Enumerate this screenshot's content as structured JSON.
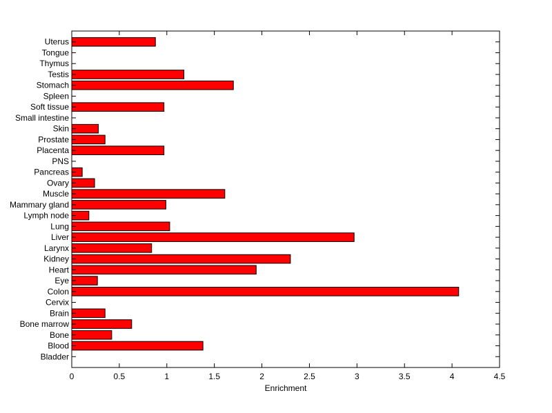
{
  "chart_data": {
    "type": "bar",
    "orientation": "horizontal",
    "xlabel": "Enrichment",
    "xlim": [
      0,
      4.5
    ],
    "xticks": [
      "0",
      "0.5",
      "1",
      "1.5",
      "2",
      "2.5",
      "3",
      "3.5",
      "4",
      "4.5"
    ],
    "grid": false,
    "bar_color": "#ff0000",
    "categories": [
      "Bladder",
      "Blood",
      "Bone",
      "Bone marrow",
      "Brain",
      "Cervix",
      "Colon",
      "Eye",
      "Heart",
      "Kidney",
      "Larynx",
      "Liver",
      "Lung",
      "Lymph node",
      "Mammary gland",
      "Muscle",
      "Ovary",
      "Pancreas",
      "PNS",
      "Placenta",
      "Prostate",
      "Skin",
      "Small intestine",
      "Soft tissue",
      "Spleen",
      "Stomach",
      "Testis",
      "Thymus",
      "Tongue",
      "Uterus"
    ],
    "values": [
      0,
      1.38,
      0.42,
      0.63,
      0.35,
      0,
      4.07,
      0.27,
      1.94,
      2.3,
      0.84,
      2.97,
      1.03,
      0.18,
      0.99,
      1.61,
      0.24,
      0.11,
      0,
      0.97,
      0.35,
      0.28,
      0,
      0.97,
      0,
      1.7,
      1.18,
      0,
      0,
      0.88
    ]
  }
}
